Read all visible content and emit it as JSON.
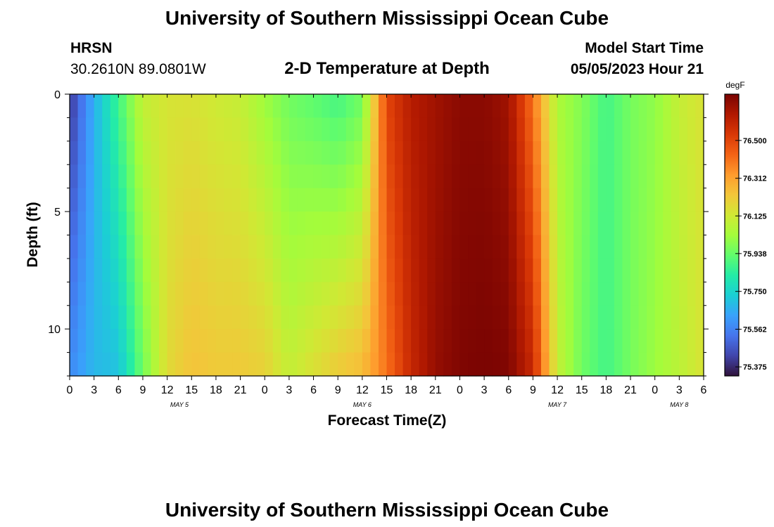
{
  "titles": {
    "main": "University of Southern Mississippi Ocean Cube",
    "footer": "University of Southern Mississippi Ocean Cube"
  },
  "station": {
    "name": "HRSN",
    "coords": "30.2610N  89.0801W"
  },
  "plot_title": "2-D Temperature at Depth",
  "model": {
    "label": "Model Start Time",
    "value": "05/05/2023 Hour 21"
  },
  "chart_data": {
    "type": "heatmap",
    "title": "2-D Temperature at Depth",
    "xlabel": "Forecast Time(Z)",
    "ylabel": "Depth (ft)",
    "x_ticks": [
      "0",
      "3",
      "6",
      "9",
      "12",
      "15",
      "18",
      "21",
      "0",
      "3",
      "6",
      "9",
      "12",
      "15",
      "18",
      "21",
      "0",
      "3",
      "6",
      "9",
      "12",
      "15",
      "18",
      "21",
      "0",
      "3",
      "6"
    ],
    "date_labels": [
      {
        "label": "MAY 5",
        "at_hours": 13.5
      },
      {
        "label": "MAY 6",
        "at_hours": 36
      },
      {
        "label": "MAY 7",
        "at_hours": 60
      },
      {
        "label": "MAY 8",
        "at_hours": 75
      }
    ],
    "y_ticks": [
      0,
      5,
      10
    ],
    "ylim": [
      0,
      12
    ],
    "xlim_hours": [
      0,
      78
    ],
    "colorbar": {
      "unit": "degF",
      "ticks": [
        "76.500",
        "76.312",
        "76.125",
        "75.938",
        "75.750",
        "75.562",
        "75.375"
      ],
      "min": 75.33,
      "max": 76.73,
      "colors": [
        "#30123b",
        "#4145ab",
        "#4675ed",
        "#39a2fc",
        "#1bcfd4",
        "#24eca6",
        "#61fc6c",
        "#a4fc3b",
        "#d1e834",
        "#f3c63a",
        "#fe9b2d",
        "#f36315",
        "#d93806",
        "#b11901",
        "#7a0402"
      ]
    },
    "time_hours": [
      0,
      3,
      6,
      9,
      12,
      15,
      18,
      21,
      24,
      27,
      30,
      33,
      36,
      39,
      42,
      45,
      48,
      51,
      54,
      57,
      60,
      63,
      66,
      69,
      72,
      75,
      78
    ],
    "surface_temp_degF": [
      75.4,
      75.66,
      75.88,
      76.1,
      76.14,
      76.15,
      76.12,
      76.1,
      76.02,
      75.95,
      75.92,
      75.88,
      75.95,
      76.5,
      76.62,
      76.66,
      76.7,
      76.7,
      76.66,
      76.4,
      76.05,
      75.98,
      75.88,
      75.96,
      76.0,
      76.1,
      76.15
    ],
    "bottom_temp_degF": [
      75.58,
      75.68,
      75.7,
      75.95,
      76.17,
      76.24,
      76.22,
      76.22,
      76.2,
      76.1,
      76.16,
      76.22,
      76.26,
      76.4,
      76.58,
      76.68,
      76.72,
      76.73,
      76.72,
      76.58,
      76.1,
      75.95,
      75.88,
      75.96,
      76.02,
      76.08,
      76.15
    ]
  }
}
